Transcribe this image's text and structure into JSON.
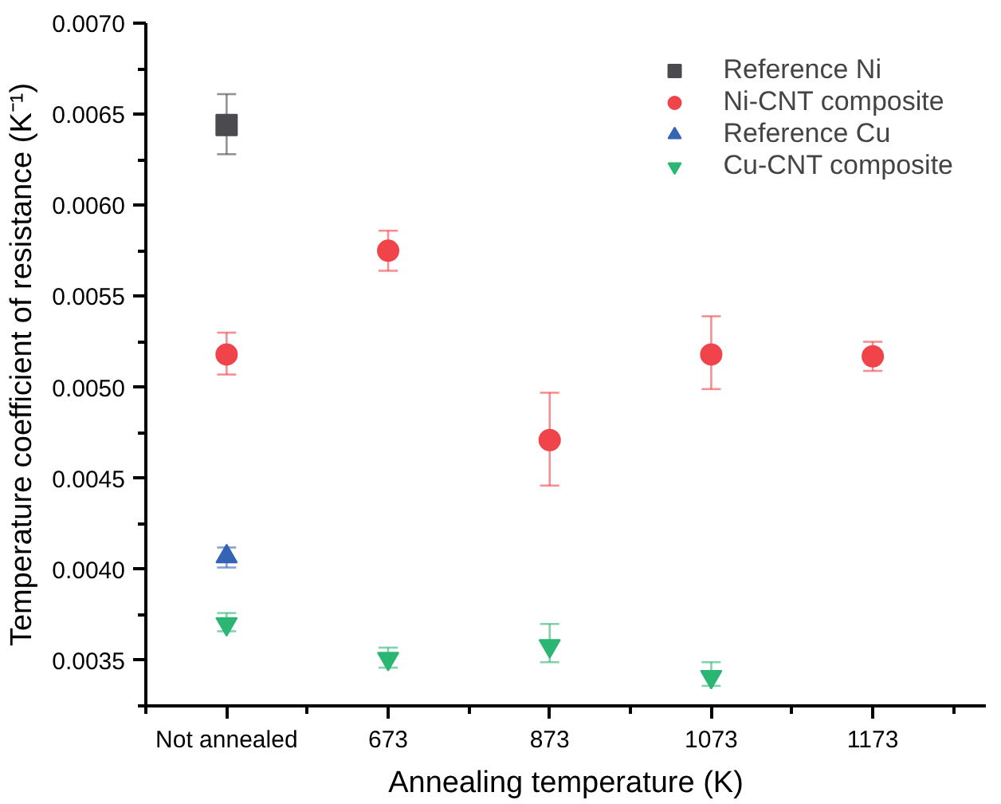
{
  "chart_data": {
    "type": "scatter",
    "xlabel": "Annealing temperature (K)",
    "ylabel": "Temperature coefficient of resistance (K⁻¹)",
    "categories": [
      "Not annealed",
      "673",
      "873",
      "1073",
      "1173"
    ],
    "ylim": [
      0.00325,
      0.007
    ],
    "yticks": [
      {
        "value": 0.0035,
        "label": "0.0035"
      },
      {
        "value": 0.004,
        "label": "0.0040"
      },
      {
        "value": 0.0045,
        "label": "0.0045"
      },
      {
        "value": 0.005,
        "label": "0.0050"
      },
      {
        "value": 0.0055,
        "label": "0.0055"
      },
      {
        "value": 0.006,
        "label": "0.0060"
      },
      {
        "value": 0.0065,
        "label": "0.0065"
      },
      {
        "value": 0.007,
        "label": "0.0070"
      }
    ],
    "grid": false,
    "legend": "top right",
    "series": [
      {
        "name": "Reference Ni",
        "color": "#4a4a4f",
        "marker": "square",
        "values": [
          0.00644,
          null,
          null,
          null,
          null
        ],
        "errors": [
          [
            0.00628,
            0.00661
          ],
          null,
          null,
          null,
          null
        ]
      },
      {
        "name": "Ni-CNT composite",
        "color": "#f0434a",
        "marker": "circle",
        "values": [
          0.00518,
          0.00575,
          0.00471,
          0.00518,
          0.00517
        ],
        "errors": [
          [
            0.00507,
            0.0053
          ],
          [
            0.00564,
            0.00586
          ],
          [
            0.00446,
            0.00497
          ],
          [
            0.00499,
            0.00539
          ],
          [
            0.00509,
            0.00525
          ]
        ]
      },
      {
        "name": "Reference Cu",
        "color": "#3464b4",
        "marker": "triangle",
        "values": [
          0.00407,
          null,
          null,
          null,
          null
        ],
        "errors": [
          [
            0.00401,
            0.00412
          ],
          null,
          null,
          null,
          null
        ]
      },
      {
        "name": "Cu-CNT composite",
        "color": "#2bb673",
        "marker": "triangle",
        "values": [
          0.0037,
          0.00351,
          0.00358,
          0.00341,
          null
        ],
        "errors": [
          [
            0.00366,
            0.00376
          ],
          [
            0.00346,
            0.00357
          ],
          [
            0.00349,
            0.0037
          ],
          [
            0.00336,
            0.00349
          ],
          null
        ]
      }
    ]
  }
}
